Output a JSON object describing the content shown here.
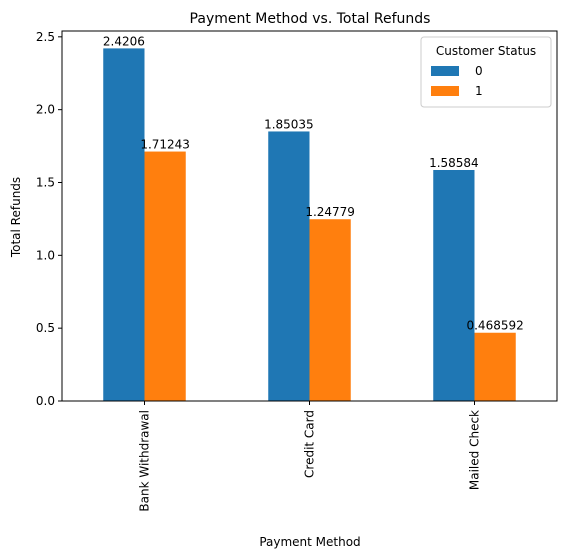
{
  "chart_data": {
    "type": "bar",
    "title": "Payment Method vs. Total Refunds",
    "xlabel": "Payment Method",
    "ylabel": "Total Refunds",
    "categories": [
      "Bank Withdrawal",
      "Credit Card",
      "Mailed Check"
    ],
    "series": [
      {
        "name": "0",
        "color": "#1f77b4",
        "values": [
          2.4206,
          1.85035,
          1.58584
        ],
        "labels": [
          "2.4206",
          "1.85035",
          "1.58584"
        ]
      },
      {
        "name": "1",
        "color": "#ff7f0e",
        "values": [
          1.71243,
          1.24779,
          0.468592
        ],
        "labels": [
          "1.71243",
          "1.24779",
          "0.468592"
        ]
      }
    ],
    "ylim": [
      0,
      2.54
    ],
    "yticks": [
      0.0,
      0.5,
      1.0,
      1.5,
      2.0,
      2.5
    ],
    "ytick_labels": [
      "0.0",
      "0.5",
      "1.0",
      "1.5",
      "2.0",
      "2.5"
    ],
    "grid": false,
    "legend": {
      "title": "Customer Status",
      "placement": "top-right"
    }
  }
}
